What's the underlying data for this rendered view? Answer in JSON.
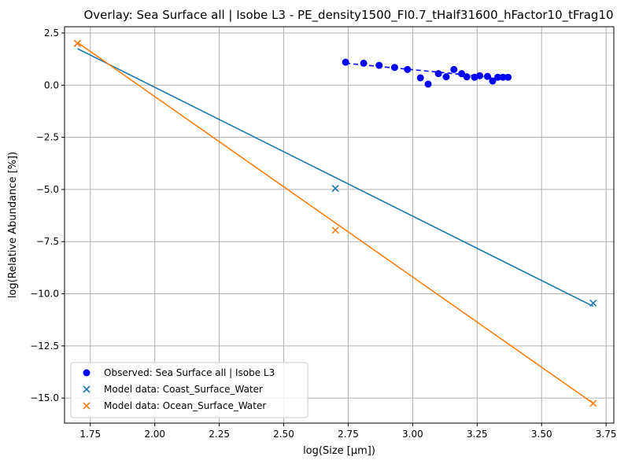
{
  "chart_data": {
    "type": "scatter",
    "title": "Overlay: Sea Surface all | Isobe L3 - PE_density1500_FI0.7_tHalf31600_hFactor10_tFrag10",
    "xlabel": "log(Size [µm])",
    "ylabel": "log(Relative Abundance [%])",
    "xlim": [
      1.65,
      3.78
    ],
    "ylim": [
      -16.2,
      2.8
    ],
    "xticks": [
      1.75,
      2.0,
      2.25,
      2.5,
      2.75,
      3.0,
      3.25,
      3.5,
      3.75
    ],
    "xtick_labels": [
      "1.75",
      "2.00",
      "2.25",
      "2.50",
      "2.75",
      "3.00",
      "3.25",
      "3.50",
      "3.75"
    ],
    "yticks": [
      2.5,
      0.0,
      -2.5,
      -5.0,
      -7.5,
      -10.0,
      -12.5,
      -15.0
    ],
    "ytick_labels": [
      "2.5",
      "0.0",
      "−2.5",
      "−5.0",
      "−7.5",
      "−10.0",
      "−12.5",
      "−15.0"
    ],
    "grid": true,
    "legend_position": "lower-left",
    "series": [
      {
        "name": "Observed: Sea Surface all | Isobe L3",
        "kind": "scatter",
        "marker": "circle",
        "color": "#0000ff",
        "x": [
          2.74,
          2.81,
          2.87,
          2.93,
          2.98,
          3.03,
          3.06,
          3.1,
          3.13,
          3.16,
          3.19,
          3.21,
          3.24,
          3.26,
          3.29,
          3.31,
          3.33,
          3.35,
          3.37
        ],
        "y": [
          1.1,
          1.05,
          0.95,
          0.85,
          0.75,
          0.35,
          0.05,
          0.55,
          0.4,
          0.75,
          0.55,
          0.4,
          0.38,
          0.45,
          0.42,
          0.2,
          0.38,
          0.38,
          0.38
        ]
      },
      {
        "name": "",
        "kind": "line",
        "dash": true,
        "color": "#0000ff",
        "x": [
          2.74,
          3.37
        ],
        "y": [
          1.05,
          0.3
        ]
      },
      {
        "name": "Model data: Coast_Surface_Water",
        "kind": "scatter",
        "marker": "x",
        "color": "#1f77b4",
        "x": [
          1.7,
          2.7,
          3.7
        ],
        "y": [
          2.0,
          -4.95,
          -10.45
        ]
      },
      {
        "name": "",
        "kind": "line",
        "color": "#1f77b4",
        "x": [
          1.7,
          3.7
        ],
        "y": [
          1.75,
          -10.6
        ]
      },
      {
        "name": "Model data: Ocean_Surface_Water",
        "kind": "scatter",
        "marker": "x",
        "color": "#ff7f0e",
        "x": [
          1.7,
          2.7,
          3.7
        ],
        "y": [
          2.0,
          -6.95,
          -15.25
        ]
      },
      {
        "name": "",
        "kind": "line",
        "color": "#ff7f0e",
        "x": [
          1.7,
          3.7
        ],
        "y": [
          2.05,
          -15.25
        ]
      }
    ],
    "legend": [
      {
        "label": "Observed: Sea Surface all | Isobe L3",
        "marker": "circle",
        "color": "#0000ff"
      },
      {
        "label": "Model data: Coast_Surface_Water",
        "marker": "x",
        "color": "#1f77b4"
      },
      {
        "label": "Model data: Ocean_Surface_Water",
        "marker": "x",
        "color": "#ff7f0e"
      }
    ]
  }
}
